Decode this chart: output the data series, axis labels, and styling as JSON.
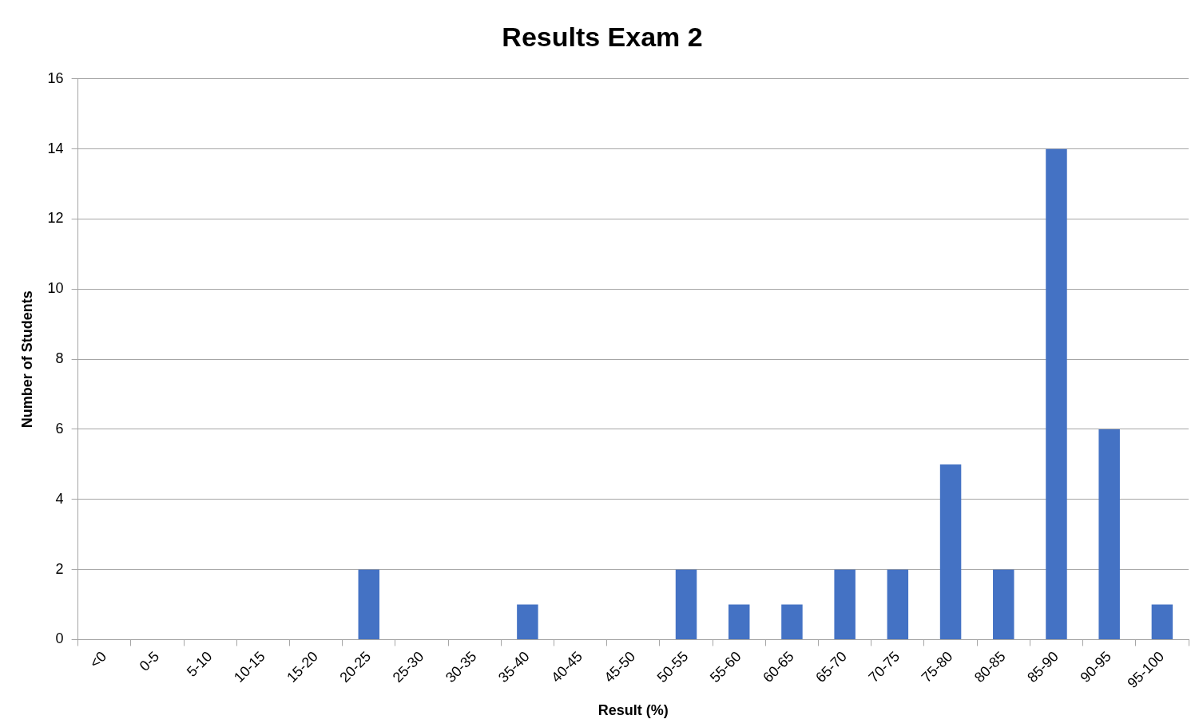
{
  "chart_data": {
    "type": "bar",
    "title": "Results Exam 2",
    "xlabel": "Result (%)",
    "ylabel": "Number of Students",
    "categories": [
      "<0",
      "0-5",
      "5-10",
      "10-15",
      "15-20",
      "20-25",
      "25-30",
      "30-35",
      "35-40",
      "40-45",
      "45-50",
      "50-55",
      "55-60",
      "60-65",
      "65-70",
      "70-75",
      "75-80",
      "80-85",
      "85-90",
      "90-95",
      "95-100"
    ],
    "values": [
      0,
      0,
      0,
      0,
      0,
      2,
      0,
      0,
      1,
      0,
      0,
      2,
      1,
      1,
      2,
      2,
      5,
      2,
      14,
      6,
      1
    ],
    "color": "#4472c4",
    "ylim": [
      0,
      16
    ],
    "yticks": [
      0,
      2,
      4,
      6,
      8,
      10,
      12,
      14,
      16
    ],
    "grid": "y",
    "legend": false
  }
}
